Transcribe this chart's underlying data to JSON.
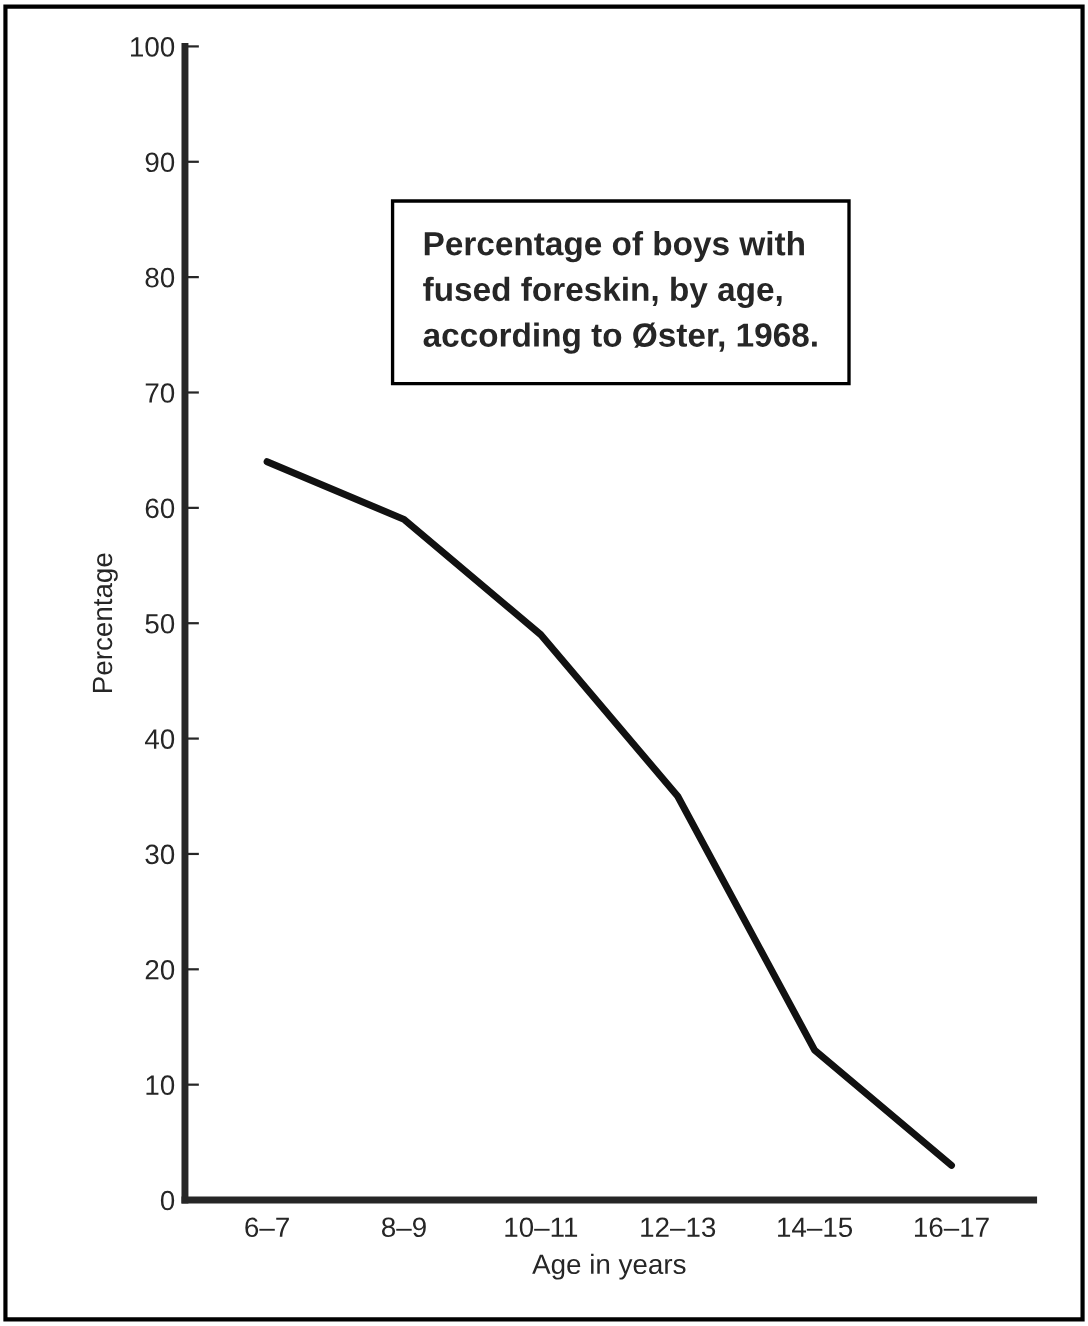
{
  "chart_data": {
    "type": "line",
    "categories": [
      "6–7",
      "8–9",
      "10–11",
      "12–13",
      "14–15",
      "16–17"
    ],
    "series": [
      {
        "color": "#111111",
        "values": [
          64,
          59,
          49,
          35,
          13,
          3
        ]
      }
    ],
    "xlabel": "Age in years",
    "ylabel": "Percentage",
    "ylim": [
      0,
      100
    ],
    "yticks": [
      0,
      10,
      20,
      30,
      40,
      50,
      60,
      70,
      80,
      90,
      100
    ],
    "annotations": [
      "Percentage of boys with\nfused foreskin, by age,\naccording to Øster, 1968."
    ],
    "grid": false,
    "marker": "none",
    "line_style": "solid"
  }
}
